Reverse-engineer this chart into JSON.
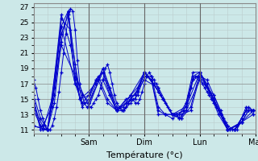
{
  "title": "Température (°c)",
  "xlabel": "Température (°c)",
  "ylabel": "",
  "background_color": "#cce8e8",
  "plot_bg_color": "#cce8e8",
  "grid_color": "#aaaaaa",
  "grid_color_major": "#888888",
  "line_color": "#0000cc",
  "marker_color": "#0000cc",
  "ylim": [
    10.5,
    27.5
  ],
  "xlim": [
    0,
    96
  ],
  "yticks": [
    11,
    13,
    15,
    17,
    19,
    21,
    23,
    25,
    27
  ],
  "xtick_positions": [
    24,
    48,
    72,
    96
  ],
  "xtick_labels": [
    "Sam",
    "Dim",
    "Lun",
    "Mar"
  ],
  "series": [
    {
      "x": [
        0,
        1,
        2,
        3,
        4,
        5,
        6,
        7,
        8,
        9,
        10,
        11,
        12,
        13,
        14,
        15,
        16,
        17,
        18,
        19,
        20,
        21,
        22,
        23,
        24,
        25,
        26,
        27,
        28,
        29,
        30,
        31,
        32,
        33,
        34,
        35,
        36,
        37,
        38,
        39,
        40,
        41,
        42,
        43,
        44,
        45,
        46,
        47,
        48,
        49,
        50,
        51,
        52,
        53,
        54,
        55,
        56,
        57,
        58,
        59,
        60,
        61,
        62,
        63,
        64,
        65,
        66,
        67,
        68,
        69,
        70,
        71,
        72,
        73,
        74,
        75,
        76,
        77,
        78,
        79,
        80,
        81,
        82,
        83,
        84,
        85,
        86,
        87,
        88,
        89,
        90,
        91,
        92,
        93,
        94,
        95
      ],
      "y": [
        17.5,
        16.5,
        15.0,
        13.5,
        12.5,
        11.5,
        11.0,
        11.0,
        11.5,
        12.5,
        14.0,
        16.0,
        18.5,
        21.0,
        23.5,
        25.5,
        26.8,
        26.5,
        24.0,
        20.0,
        17.0,
        15.5,
        14.5,
        14.0,
        14.0,
        14.0,
        14.5,
        15.0,
        15.5,
        16.5,
        17.5,
        19.0,
        19.5,
        18.5,
        17.0,
        15.5,
        14.5,
        14.0,
        13.5,
        13.5,
        14.0,
        14.5,
        15.0,
        15.0,
        14.5,
        14.5,
        15.0,
        16.0,
        17.0,
        18.0,
        18.5,
        18.0,
        17.5,
        17.0,
        16.5,
        15.5,
        15.0,
        14.5,
        14.0,
        13.5,
        13.0,
        13.0,
        13.0,
        12.5,
        12.5,
        13.5,
        14.5,
        15.5,
        16.5,
        17.5,
        18.0,
        18.0,
        17.5,
        17.0,
        16.5,
        16.0,
        15.5,
        15.0,
        14.5,
        14.0,
        13.5,
        13.0,
        12.5,
        12.0,
        11.5,
        11.0,
        11.0,
        11.0,
        11.5,
        12.0,
        12.5,
        13.0,
        13.5,
        13.5,
        13.5,
        13.0
      ]
    },
    {
      "x": [
        0,
        3,
        6,
        9,
        12,
        15,
        18,
        21,
        24,
        27,
        30,
        33,
        36,
        39,
        42,
        45,
        48,
        51,
        54,
        57,
        60,
        63,
        66,
        69,
        72,
        75,
        78,
        81,
        84,
        87,
        90,
        93,
        95
      ],
      "y": [
        15.5,
        12.5,
        11.0,
        14.5,
        22.5,
        26.5,
        19.5,
        14.5,
        14.5,
        17.0,
        19.0,
        16.5,
        14.0,
        13.5,
        14.5,
        15.5,
        18.0,
        18.0,
        14.0,
        13.0,
        13.0,
        12.5,
        13.5,
        17.5,
        18.0,
        17.5,
        15.5,
        13.5,
        11.5,
        11.0,
        12.5,
        14.0,
        13.5
      ]
    },
    {
      "x": [
        0,
        3,
        6,
        9,
        12,
        15,
        18,
        21,
        24,
        27,
        30,
        33,
        36,
        39,
        42,
        45,
        48,
        51,
        54,
        57,
        60,
        63,
        66,
        69,
        72,
        75,
        78,
        81,
        84,
        87,
        90,
        93,
        95
      ],
      "y": [
        15.0,
        11.5,
        11.0,
        15.5,
        23.5,
        26.0,
        17.5,
        14.0,
        15.0,
        17.5,
        18.5,
        15.5,
        13.5,
        13.5,
        15.0,
        16.0,
        18.5,
        17.5,
        13.5,
        13.0,
        13.0,
        13.0,
        14.0,
        18.0,
        18.5,
        17.0,
        15.0,
        13.0,
        11.0,
        11.0,
        12.0,
        13.5,
        13.5
      ]
    },
    {
      "x": [
        0,
        3,
        6,
        9,
        12,
        15,
        18,
        21,
        24,
        27,
        30,
        33,
        36,
        39,
        42,
        45,
        48,
        51,
        54,
        57,
        60,
        63,
        66,
        69,
        72,
        75,
        78,
        81,
        84,
        87,
        90,
        93,
        95
      ],
      "y": [
        14.5,
        11.0,
        11.0,
        16.5,
        24.5,
        26.5,
        17.0,
        14.5,
        15.5,
        17.5,
        17.5,
        15.5,
        13.5,
        14.0,
        15.5,
        16.5,
        18.5,
        17.5,
        13.0,
        13.0,
        12.5,
        13.0,
        14.5,
        18.5,
        18.5,
        16.5,
        15.0,
        13.0,
        11.0,
        11.0,
        12.0,
        13.5,
        13.5
      ]
    },
    {
      "x": [
        0,
        4,
        8,
        12,
        16,
        20,
        24,
        28,
        32,
        36,
        40,
        44,
        48,
        52,
        56,
        60,
        64,
        68,
        72,
        76,
        80,
        84,
        88,
        92,
        95
      ],
      "y": [
        14.0,
        11.5,
        14.0,
        25.5,
        24.0,
        15.0,
        15.5,
        18.0,
        15.0,
        13.5,
        14.5,
        15.0,
        18.5,
        17.0,
        15.0,
        13.0,
        13.0,
        13.5,
        18.0,
        16.0,
        13.5,
        11.0,
        11.5,
        13.5,
        13.5
      ]
    },
    {
      "x": [
        0,
        4,
        8,
        12,
        16,
        20,
        24,
        28,
        32,
        36,
        40,
        44,
        48,
        52,
        56,
        60,
        64,
        68,
        72,
        76,
        80,
        84,
        88,
        92,
        95
      ],
      "y": [
        13.5,
        11.0,
        15.0,
        26.0,
        22.0,
        15.0,
        16.0,
        17.5,
        14.5,
        13.5,
        15.0,
        15.5,
        18.5,
        17.0,
        15.0,
        13.0,
        12.5,
        14.0,
        18.5,
        16.0,
        13.0,
        11.0,
        11.0,
        14.0,
        13.5
      ]
    },
    {
      "x": [
        0,
        6,
        12,
        18,
        24,
        30,
        36,
        42,
        48,
        54,
        60,
        66,
        72,
        78,
        84,
        90,
        95
      ],
      "y": [
        11.5,
        11.0,
        22.0,
        18.0,
        14.0,
        19.0,
        13.5,
        15.0,
        17.5,
        16.5,
        13.0,
        13.5,
        17.5,
        15.5,
        11.0,
        12.0,
        13.0
      ]
    },
    {
      "x": [
        0,
        6,
        12,
        18,
        24,
        30,
        36,
        42,
        48,
        54,
        60,
        66,
        72,
        78,
        84,
        90,
        95
      ],
      "y": [
        11.5,
        11.0,
        24.5,
        17.0,
        14.5,
        18.5,
        13.5,
        15.5,
        18.5,
        16.0,
        13.0,
        14.0,
        18.5,
        15.0,
        11.0,
        12.0,
        13.5
      ]
    }
  ]
}
